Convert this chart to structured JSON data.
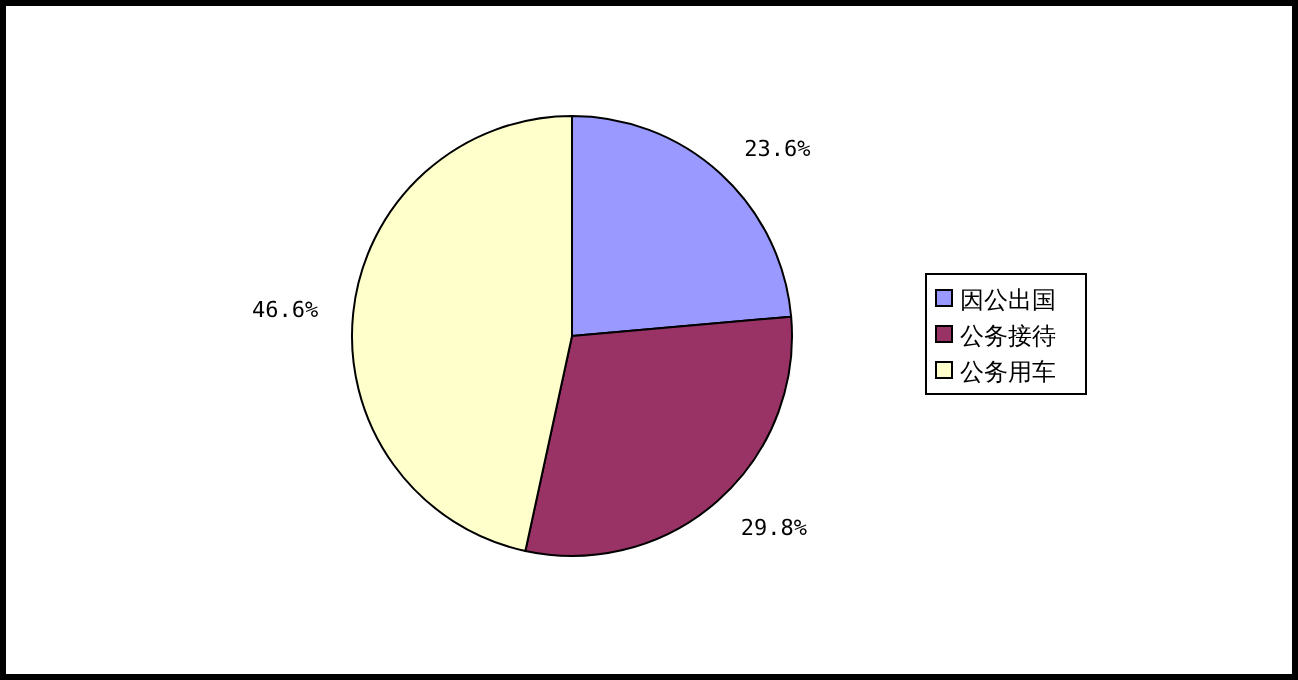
{
  "chart_data": {
    "type": "pie",
    "categories": [
      "因公出国",
      "公务接待",
      "公务用车"
    ],
    "values": [
      23.6,
      29.8,
      46.6
    ],
    "colors": [
      "#9999ff",
      "#993366",
      "#ffffcc"
    ],
    "value_labels": [
      "23.6%",
      "29.8%",
      "46.6%"
    ],
    "legend": "right"
  }
}
